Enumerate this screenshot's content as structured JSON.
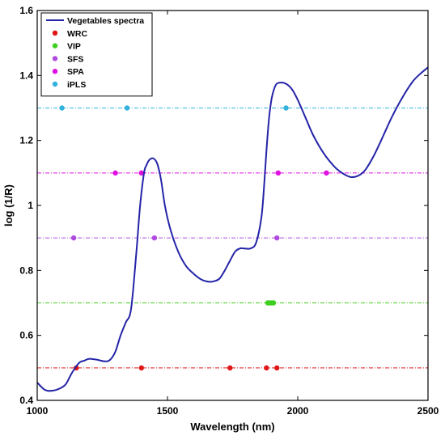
{
  "chart_data": {
    "type": "line",
    "xlabel": "Wavelength (nm)",
    "ylabel": "log (1/R)",
    "xlim": [
      1000,
      2500
    ],
    "ylim": [
      0.4,
      1.6
    ],
    "x_ticks": [
      1000,
      1500,
      2000,
      2500
    ],
    "y_ticks": [
      0.4,
      0.6,
      0.8,
      1.0,
      1.2,
      1.4,
      1.6
    ],
    "x_tick_labels": [
      "1000",
      "1500",
      "2000",
      "2500"
    ],
    "y_tick_labels": [
      "0.4",
      "0.6",
      "0.8",
      "1",
      "1.2",
      "1.4",
      "1.6"
    ],
    "legend_position": "top-left",
    "grid": false,
    "spectrum": {
      "name": "Vegetables spectra",
      "color": "#2424a8",
      "x": [
        1000,
        1030,
        1060,
        1090,
        1110,
        1130,
        1150,
        1165,
        1180,
        1200,
        1230,
        1260,
        1280,
        1300,
        1320,
        1340,
        1360,
        1380,
        1395,
        1410,
        1420,
        1430,
        1445,
        1460,
        1475,
        1490,
        1510,
        1540,
        1570,
        1600,
        1630,
        1660,
        1680,
        1700,
        1720,
        1740,
        1760,
        1780,
        1800,
        1820,
        1840,
        1860,
        1870,
        1880,
        1890,
        1900,
        1910,
        1920,
        1940,
        1960,
        1980,
        2000,
        2030,
        2060,
        2100,
        2140,
        2170,
        2200,
        2220,
        2240,
        2260,
        2290,
        2320,
        2360,
        2400,
        2440,
        2470,
        2500
      ],
      "y": [
        0.455,
        0.432,
        0.43,
        0.438,
        0.45,
        0.48,
        0.505,
        0.518,
        0.522,
        0.528,
        0.525,
        0.52,
        0.525,
        0.55,
        0.6,
        0.64,
        0.68,
        0.85,
        1.0,
        1.1,
        1.125,
        1.14,
        1.145,
        1.13,
        1.08,
        1.0,
        0.93,
        0.86,
        0.815,
        0.79,
        0.772,
        0.765,
        0.767,
        0.775,
        0.8,
        0.83,
        0.858,
        0.868,
        0.867,
        0.868,
        0.885,
        0.96,
        1.05,
        1.17,
        1.27,
        1.33,
        1.36,
        1.375,
        1.378,
        1.372,
        1.355,
        1.325,
        1.27,
        1.215,
        1.16,
        1.12,
        1.1,
        1.088,
        1.088,
        1.095,
        1.11,
        1.15,
        1.2,
        1.27,
        1.33,
        1.38,
        1.405,
        1.425
      ]
    },
    "series": [
      {
        "name": "WRC",
        "color": "#e01515",
        "level": 0.5,
        "x": [
          1150,
          1400,
          1740,
          1880,
          1920
        ]
      },
      {
        "name": "VIP",
        "color": "#3fcf1f",
        "level": 0.7,
        "x": [
          1885,
          1893,
          1900,
          1907
        ]
      },
      {
        "name": "SFS",
        "color": "#b04ae0",
        "level": 0.9,
        "x": [
          1140,
          1450,
          1920
        ]
      },
      {
        "name": "SPA",
        "color": "#e010e0",
        "level": 1.1,
        "x": [
          1300,
          1400,
          1925,
          2110
        ]
      },
      {
        "name": "iPLS",
        "color": "#33b2e0",
        "level": 1.3,
        "x": [
          1095,
          1345,
          1955
        ]
      }
    ]
  }
}
